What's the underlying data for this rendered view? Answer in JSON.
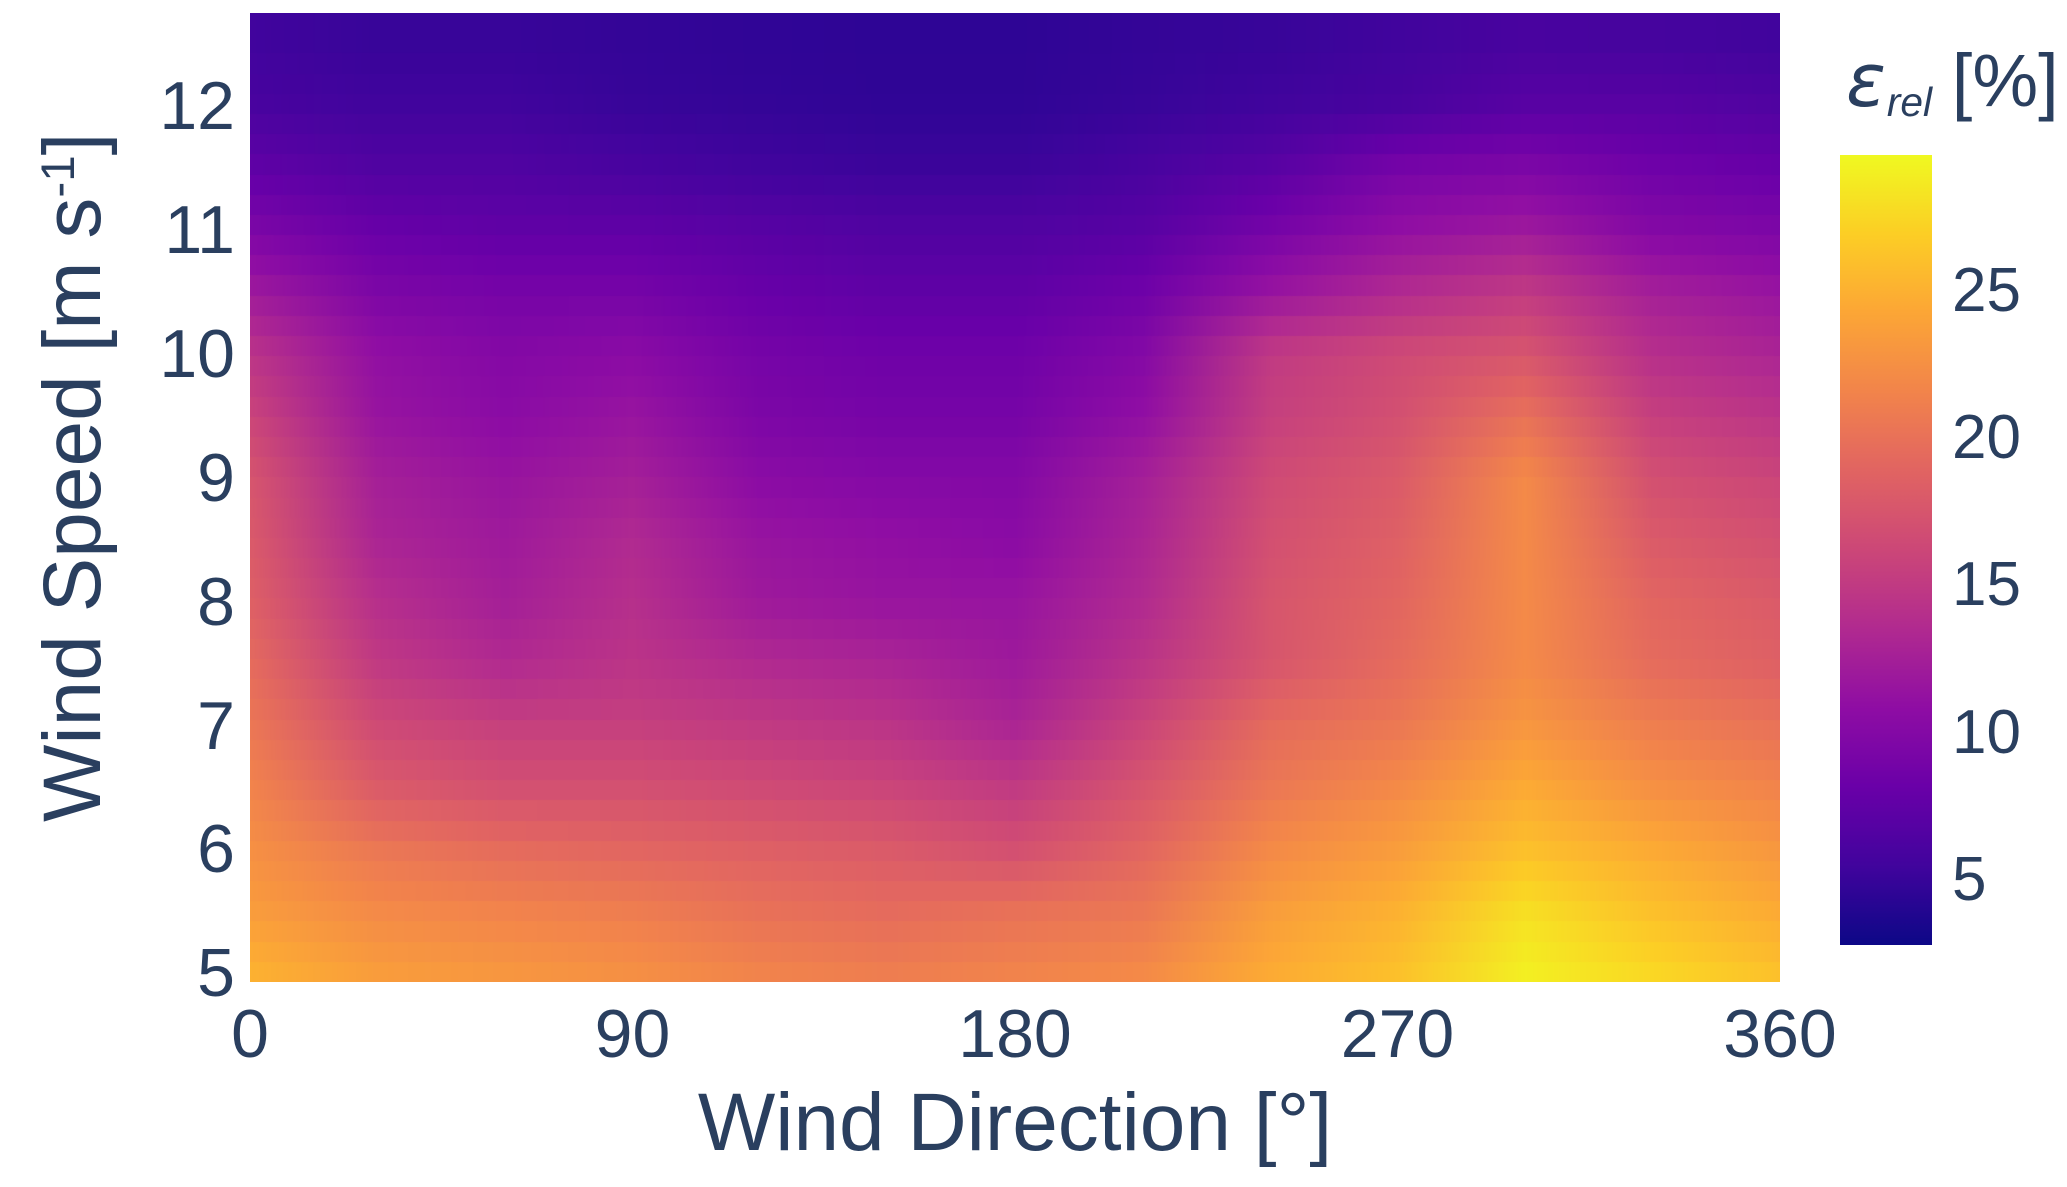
{
  "figure": {
    "background": "#ffffff",
    "text_color": "#2a3f5f"
  },
  "chart_data": {
    "type": "heatmap",
    "title": "",
    "x_label": "Wind Direction [°]",
    "y_label": {
      "main": "Wind Speed [m s",
      "sup": "-1",
      "close": "]"
    },
    "colorbar_title": {
      "symbol": "ε",
      "symbol_sub": "rel",
      "unit": " [%]"
    },
    "x": [
      0,
      30,
      60,
      90,
      120,
      150,
      180,
      210,
      240,
      270,
      300,
      330,
      360
    ],
    "y": [
      5,
      5.5,
      6,
      6.5,
      7,
      7.5,
      8,
      8.5,
      9,
      9.5,
      10,
      10.5,
      11,
      11.5,
      12,
      12.5
    ],
    "values_orientation": "rows follow y ascending (first row = wind speed 5), columns follow x (wind direction)",
    "values": [
      [
        25.0,
        23.5,
        23.0,
        22.5,
        21.5,
        21.0,
        21.5,
        22.0,
        24.5,
        26.0,
        29.0,
        27.5,
        26.0
      ],
      [
        23.5,
        22.0,
        21.5,
        21.0,
        20.0,
        19.5,
        20.0,
        20.5,
        23.5,
        25.0,
        28.0,
        26.0,
        24.5
      ],
      [
        22.5,
        20.5,
        19.5,
        19.0,
        18.5,
        18.0,
        17.0,
        19.0,
        22.0,
        23.5,
        26.0,
        24.5,
        23.0
      ],
      [
        21.5,
        18.0,
        17.0,
        17.0,
        16.5,
        16.0,
        15.0,
        17.5,
        20.5,
        22.0,
        24.5,
        22.5,
        21.5
      ],
      [
        20.5,
        16.5,
        15.5,
        15.5,
        15.0,
        14.5,
        13.0,
        16.0,
        19.5,
        20.5,
        23.0,
        21.0,
        20.0
      ],
      [
        19.5,
        15.0,
        13.5,
        14.5,
        13.5,
        13.0,
        12.0,
        14.5,
        17.5,
        19.5,
        22.0,
        19.5,
        18.5
      ],
      [
        18.5,
        14.0,
        12.5,
        14.0,
        12.0,
        11.5,
        11.5,
        13.5,
        17.5,
        19.0,
        22.0,
        19.0,
        18.0
      ],
      [
        18.0,
        13.0,
        12.0,
        13.5,
        11.5,
        11.0,
        10.5,
        13.0,
        17.0,
        18.5,
        22.0,
        18.0,
        17.0
      ],
      [
        17.5,
        12.5,
        11.5,
        12.5,
        10.5,
        10.0,
        10.0,
        12.5,
        16.5,
        18.0,
        22.0,
        17.0,
        16.0
      ],
      [
        16.0,
        11.5,
        10.5,
        11.5,
        9.5,
        9.0,
        9.0,
        11.0,
        15.5,
        17.0,
        20.0,
        15.5,
        14.5
      ],
      [
        14.5,
        11.0,
        10.0,
        10.5,
        9.0,
        8.5,
        8.5,
        10.0,
        15.0,
        16.5,
        17.5,
        14.0,
        13.0
      ],
      [
        12.0,
        9.5,
        9.0,
        9.0,
        8.0,
        7.5,
        7.5,
        8.5,
        11.5,
        13.5,
        15.0,
        12.5,
        11.5
      ],
      [
        9.5,
        8.0,
        7.5,
        7.5,
        7.0,
        6.5,
        6.5,
        7.0,
        9.0,
        11.0,
        12.0,
        10.0,
        9.5
      ],
      [
        7.5,
        6.5,
        6.5,
        6.0,
        5.5,
        5.2,
        5.2,
        6.0,
        7.0,
        9.0,
        9.5,
        8.5,
        8.0
      ],
      [
        6.0,
        5.5,
        5.5,
        5.0,
        4.8,
        4.6,
        4.6,
        5.0,
        5.5,
        6.0,
        7.0,
        7.0,
        6.5
      ],
      [
        5.5,
        5.0,
        5.0,
        4.8,
        4.6,
        4.5,
        4.5,
        4.8,
        5.0,
        5.5,
        6.0,
        5.8,
        5.5
      ]
    ],
    "xlim": [
      0,
      360
    ],
    "ylim": [
      4.93,
      12.75
    ],
    "zlim": [
      2.8,
      29.6
    ],
    "x_ticks": [
      0,
      90,
      180,
      270,
      360
    ],
    "y_ticks": [
      5,
      6,
      7,
      8,
      9,
      10,
      11,
      12
    ],
    "colorbar_ticks": [
      5,
      10,
      15,
      20,
      25
    ],
    "grid": "off",
    "legend": "colorbar right",
    "colormap": {
      "name": "plasma",
      "stops": [
        "#0d0887",
        "#41049d",
        "#6a00a8",
        "#8f0da4",
        "#b12a90",
        "#cc4778",
        "#e16462",
        "#f2844b",
        "#fca636",
        "#fcce25",
        "#f0f921"
      ]
    }
  }
}
